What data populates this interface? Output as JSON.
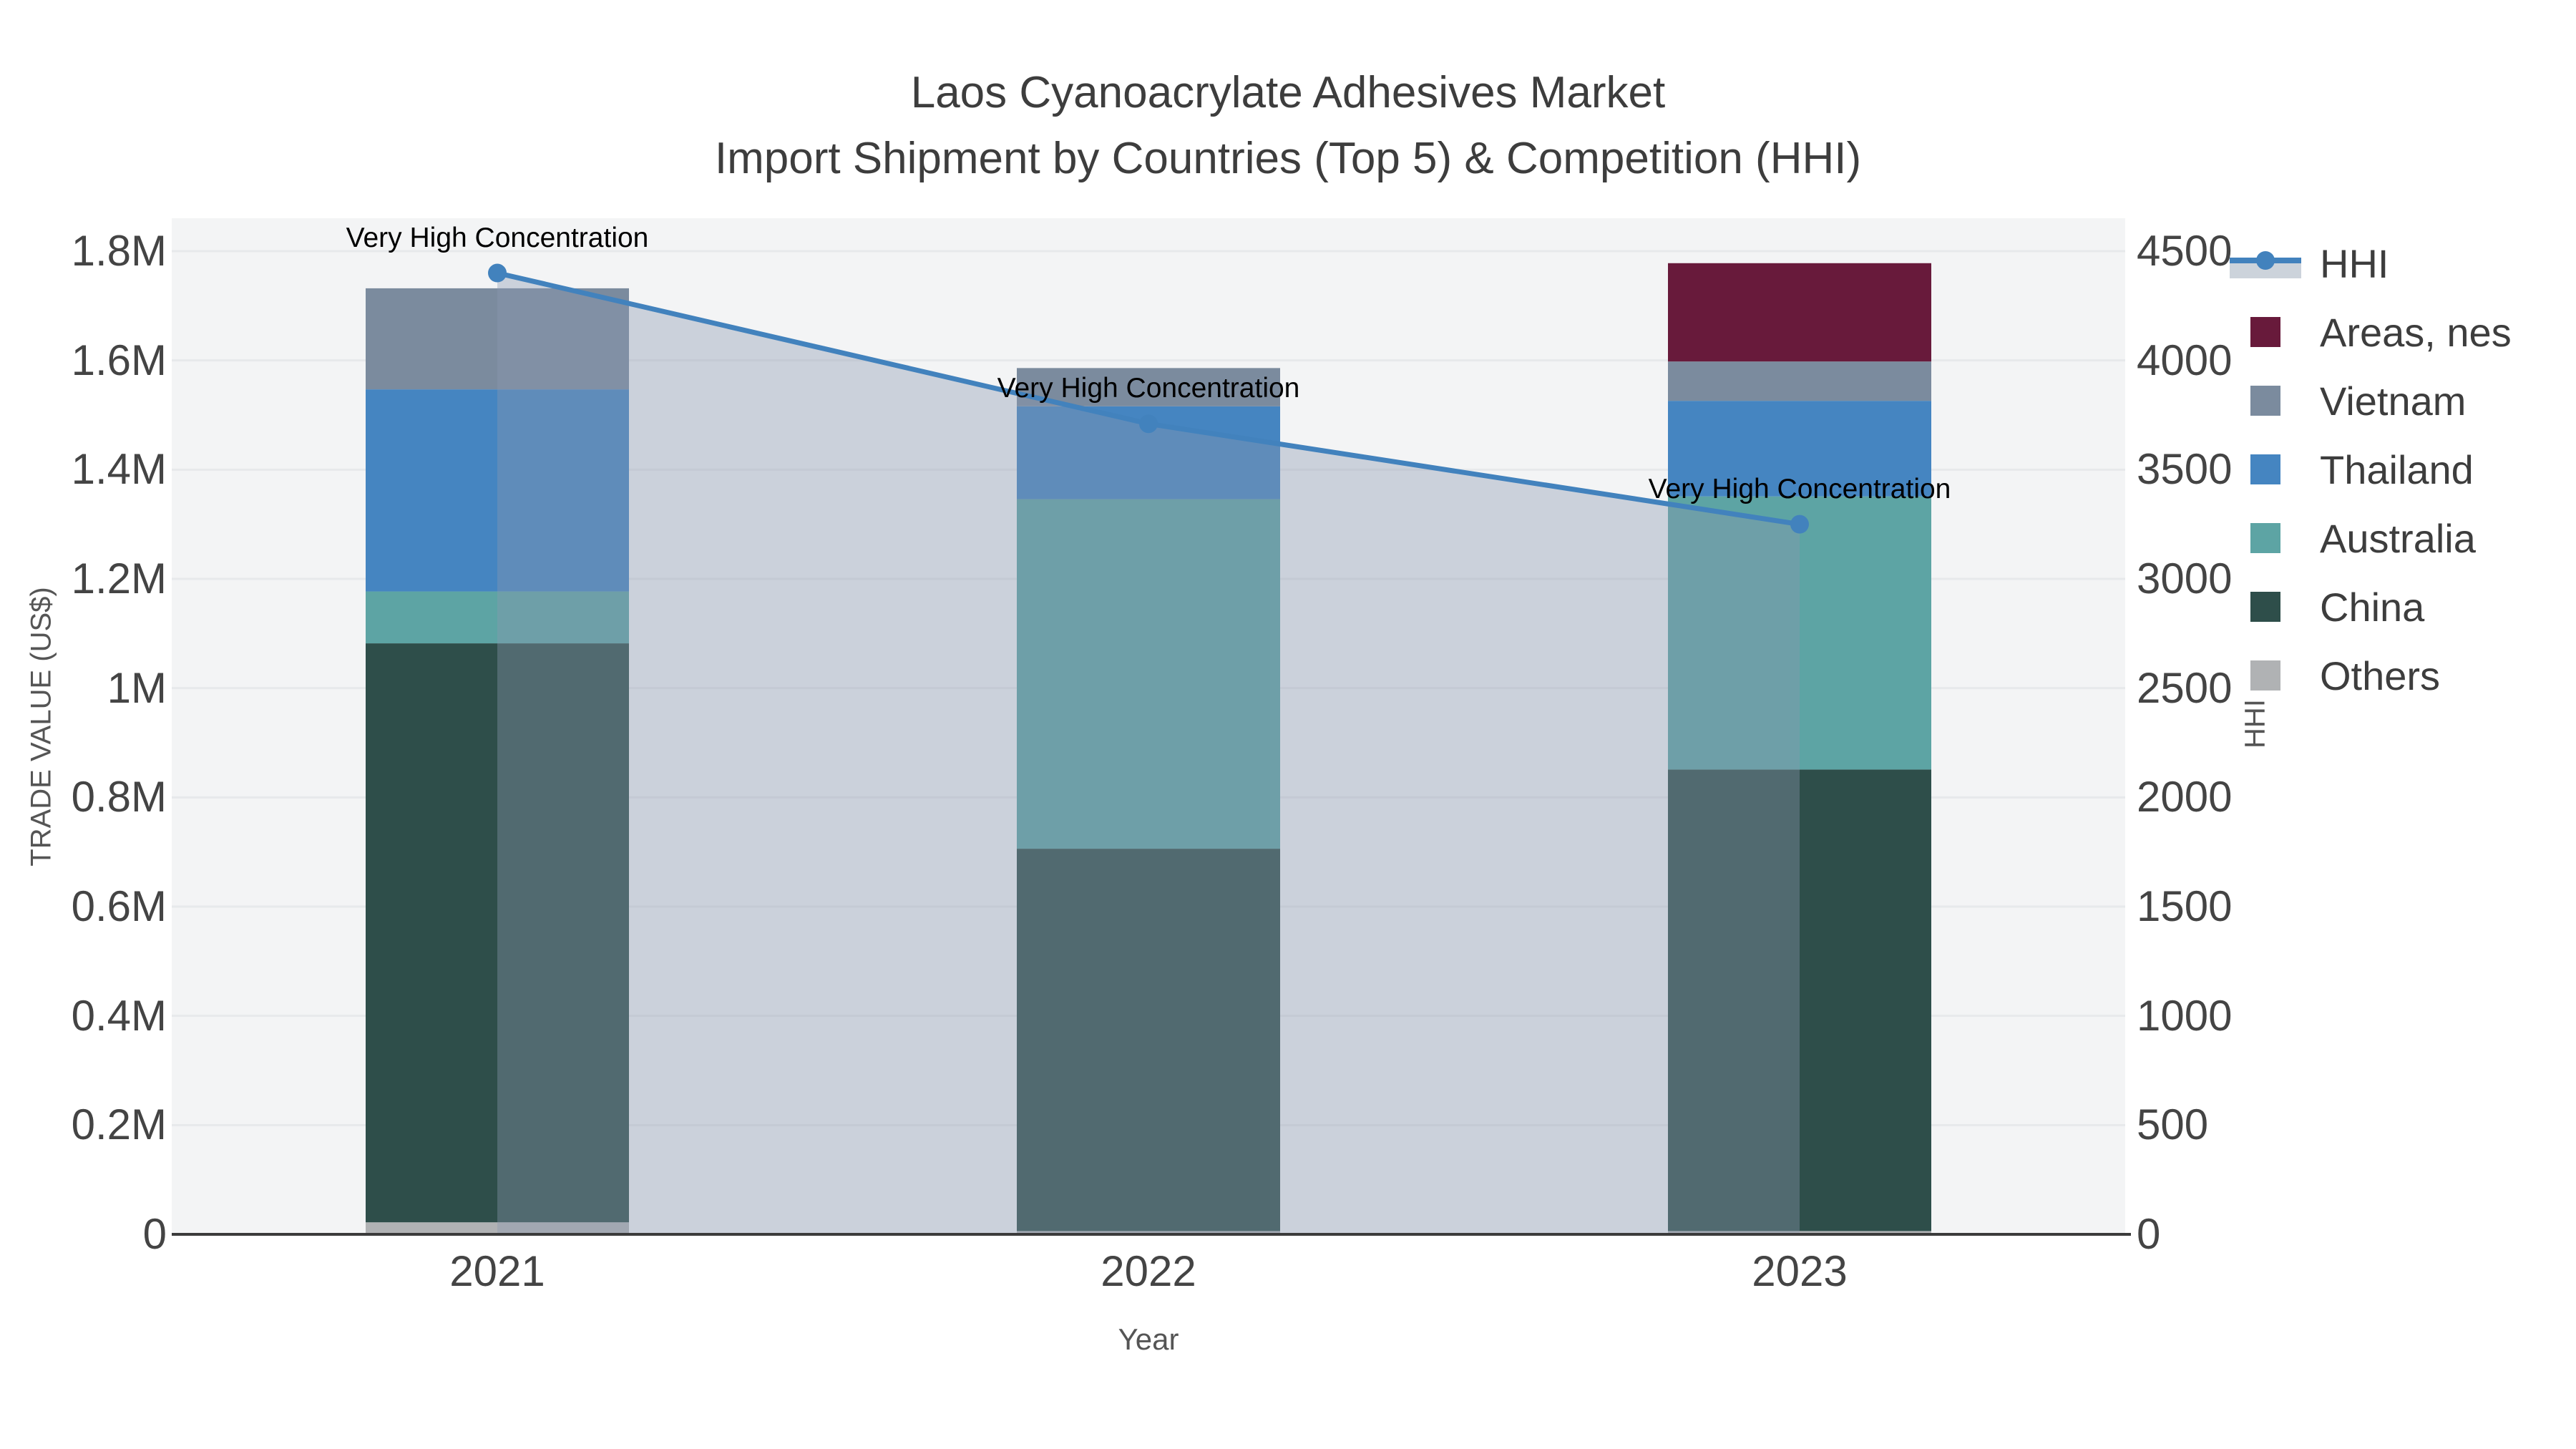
{
  "title": {
    "line1": "Laos Cyanoacrylate Adhesives Market",
    "line2": "Import Shipment by Countries (Top 5) & Competition (HHI)"
  },
  "colors": {
    "line": "#4282bd",
    "area_fill": "rgba(140,153,175,0.38)",
    "legend_band": "#ccd3db",
    "plot_bg": "#f3f4f5",
    "grid": "#e7e9eb",
    "axis_line": "#3b3b3b",
    "tick_text": "#444444",
    "title_text": "#3d3d3d",
    "axis_title_text": "#555555",
    "annotation_text": "#000000"
  },
  "legend": {
    "items": [
      {
        "label": "HHI",
        "sample": "line"
      },
      {
        "label": "Areas, nes",
        "sample": "swatch",
        "color": "#681a3b"
      },
      {
        "label": "Vietnam",
        "sample": "swatch",
        "color": "#7b8b9e"
      },
      {
        "label": "Thailand",
        "sample": "swatch",
        "color": "#4585c1"
      },
      {
        "label": "Australia",
        "sample": "swatch",
        "color": "#5da4a4"
      },
      {
        "label": "China",
        "sample": "swatch",
        "color": "#2e4e4a"
      },
      {
        "label": "Others",
        "sample": "swatch",
        "color": "#b0b2b4"
      }
    ]
  },
  "chart_data": {
    "type": "bar",
    "subtype": "stacked bars with line overlay on secondary axis",
    "title": "Laos Cyanoacrylate Adhesives Market — Import Shipment by Countries (Top 5) & Competition (HHI)",
    "categories": [
      "2021",
      "2022",
      "2023"
    ],
    "series": [
      {
        "name": "Others",
        "color": "#b0b2b4",
        "values": [
          22000,
          6000,
          6000
        ]
      },
      {
        "name": "China",
        "color": "#2e4e4a",
        "values": [
          1060000,
          700000,
          845000
        ]
      },
      {
        "name": "Australia",
        "color": "#5da4a4",
        "values": [
          95000,
          640000,
          500000
        ]
      },
      {
        "name": "Thailand",
        "color": "#4585c1",
        "values": [
          370000,
          170000,
          175000
        ]
      },
      {
        "name": "Vietnam",
        "color": "#7b8b9e",
        "values": [
          185000,
          70000,
          72000
        ]
      },
      {
        "name": "Areas, nes",
        "color": "#681a3b",
        "values": [
          0,
          0,
          180000
        ]
      }
    ],
    "line_series": {
      "name": "HHI",
      "axis": "right",
      "color": "#4282bd",
      "fill": "tozeroy",
      "fill_color": "rgba(140,153,175,0.38)",
      "values": [
        4400,
        3710,
        3250
      ]
    },
    "annotations": [
      {
        "category": "2021",
        "text": "Very High Concentration"
      },
      {
        "category": "2022",
        "text": "Very High Concentration"
      },
      {
        "category": "2023",
        "text": "Very High Concentration"
      }
    ],
    "xlabel": "Year",
    "ylabel_left": "TRADE VALUE (US$)",
    "ylabel_right": "HHI",
    "ylim_left": [
      0,
      1800000
    ],
    "ylim_right": [
      0,
      4500
    ],
    "yticks_left": [
      {
        "v": 0,
        "label": "0"
      },
      {
        "v": 200000,
        "label": "0.2M"
      },
      {
        "v": 400000,
        "label": "0.4M"
      },
      {
        "v": 600000,
        "label": "0.6M"
      },
      {
        "v": 800000,
        "label": "0.8M"
      },
      {
        "v": 1000000,
        "label": "1M"
      },
      {
        "v": 1200000,
        "label": "1.2M"
      },
      {
        "v": 1400000,
        "label": "1.4M"
      },
      {
        "v": 1600000,
        "label": "1.6M"
      },
      {
        "v": 1800000,
        "label": "1.8M"
      }
    ],
    "yticks_right": [
      {
        "v": 0,
        "label": "0"
      },
      {
        "v": 500,
        "label": "500"
      },
      {
        "v": 1000,
        "label": "1000"
      },
      {
        "v": 1500,
        "label": "1500"
      },
      {
        "v": 2000,
        "label": "2000"
      },
      {
        "v": 2500,
        "label": "2500"
      },
      {
        "v": 3000,
        "label": "3000"
      },
      {
        "v": 3500,
        "label": "3500"
      },
      {
        "v": 4000,
        "label": "4000"
      },
      {
        "v": 4500,
        "label": "4500"
      }
    ],
    "grid": true,
    "legend_position": "right"
  }
}
